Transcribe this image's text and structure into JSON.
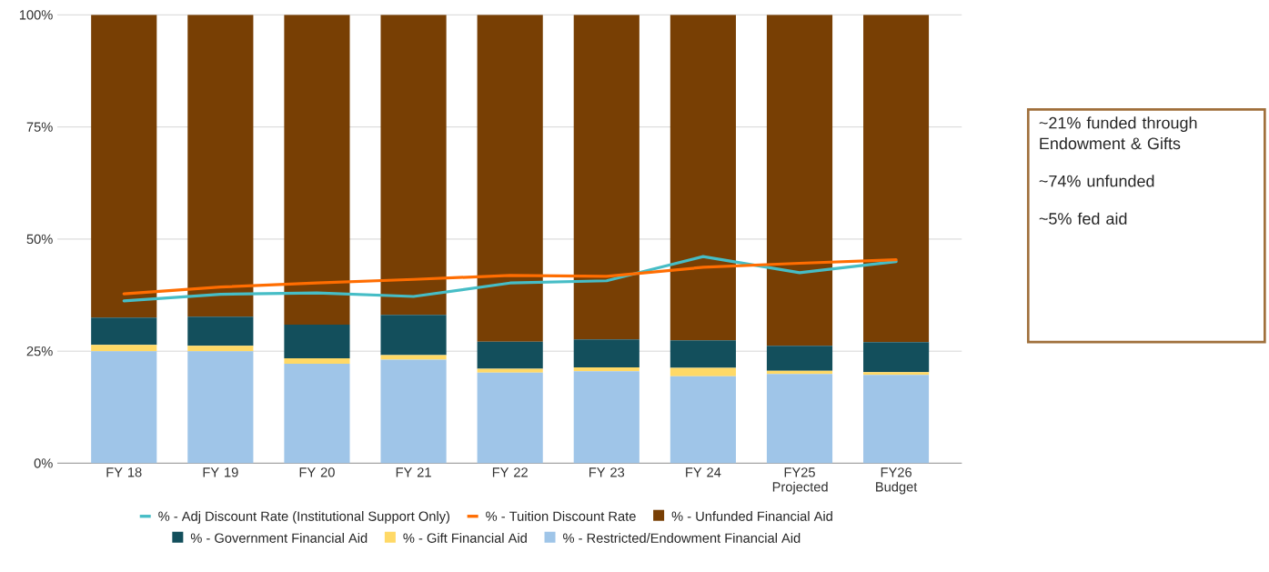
{
  "chart_data": {
    "type": "bar",
    "stacked": true,
    "categories": [
      "FY 18",
      "FY 19",
      "FY 20",
      "FY 21",
      "FY 22",
      "FY 23",
      "FY 24",
      "FY25 Projected",
      "FY26 Budget"
    ],
    "series": [
      {
        "name": "% - Restricted/Endowment Financial Aid",
        "color": "#9fc5e8",
        "values": [
          25.0,
          25.0,
          22.2,
          23.1,
          20.2,
          20.5,
          19.4,
          19.9,
          19.7
        ]
      },
      {
        "name": "% - Gift Financial Aid",
        "color": "#ffd966",
        "values": [
          1.4,
          1.2,
          1.2,
          1.0,
          0.9,
          0.9,
          1.9,
          0.7,
          0.6
        ]
      },
      {
        "name": "% - Government Financial Aid",
        "color": "#134f5c",
        "values": [
          6.1,
          6.5,
          7.5,
          9.0,
          6.0,
          6.2,
          6.1,
          5.6,
          6.7
        ]
      },
      {
        "name": "% - Unfunded Financial Aid",
        "color": "#783f04",
        "values": [
          67.5,
          67.3,
          69.1,
          66.9,
          72.9,
          72.4,
          72.6,
          73.8,
          73.0
        ]
      },
      {
        "name": "% - Adj Discount Rate (Institutional Support Only)",
        "type": "line",
        "color": "#46bdc6",
        "values": [
          36.2,
          37.7,
          38.0,
          37.2,
          40.2,
          40.7,
          46.1,
          42.5,
          45.0
        ]
      },
      {
        "name": "% - Tuition Discount Rate",
        "type": "line",
        "color": "#ff6d01",
        "values": [
          37.8,
          39.3,
          40.2,
          41.0,
          41.9,
          41.7,
          43.7,
          44.6,
          45.4
        ]
      }
    ],
    "ylim": [
      0,
      100
    ],
    "yticks": [
      {
        "value": 0,
        "label": "0%"
      },
      {
        "value": 25,
        "label": "25%"
      },
      {
        "value": 50,
        "label": "50%"
      },
      {
        "value": 75,
        "label": "75%"
      },
      {
        "value": 100,
        "label": "100%"
      }
    ],
    "grid": "y",
    "legend": "bottom",
    "annotations": [
      "~21% funded through Endowment & Gifts",
      "~74% unfunded",
      "~5% fed aid"
    ]
  }
}
